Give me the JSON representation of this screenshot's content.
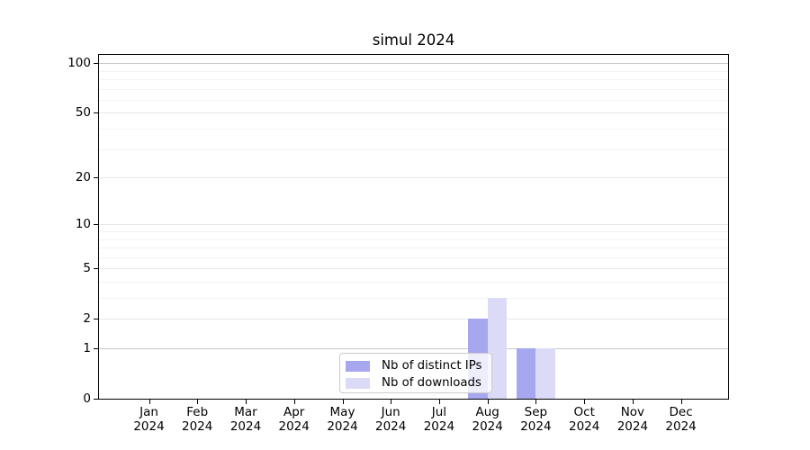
{
  "chart_data": {
    "type": "bar",
    "title": "simul 2024",
    "categories": [
      "Jan 2024",
      "Feb 2024",
      "Mar 2024",
      "Apr 2024",
      "May 2024",
      "Jun 2024",
      "Jul 2024",
      "Aug 2024",
      "Sep 2024",
      "Oct 2024",
      "Nov 2024",
      "Dec 2024"
    ],
    "series": [
      {
        "name": "Nb of distinct IPs",
        "color": "#a7a7f0",
        "values": [
          0,
          0,
          0,
          0,
          0,
          0,
          0,
          2,
          1,
          0,
          0,
          0
        ]
      },
      {
        "name": "Nb of downloads",
        "color": "#dbdbf8",
        "values": [
          0,
          0,
          0,
          0,
          0,
          0,
          0,
          3,
          1,
          0,
          0,
          0
        ]
      }
    ],
    "xlabel": "",
    "ylabel": "",
    "y_axis": {
      "scale": "log1p",
      "ticks": [
        0,
        1,
        2,
        5,
        10,
        20,
        50,
        100
      ],
      "minor_gridlines": [
        3,
        4,
        6,
        7,
        8,
        9,
        30,
        40,
        60,
        70,
        80,
        90
      ],
      "ylim": [
        0,
        112
      ]
    },
    "grid": true,
    "legend": {
      "position": "inside-bottom-center",
      "entries": [
        "Nb of distinct IPs",
        "Nb of downloads"
      ]
    }
  },
  "colors": {
    "bar_distinct_ips": "#a7a7f0",
    "bar_downloads": "#dbdbf8",
    "gridline_strong": "#c9c9c9",
    "gridline_mid": "#e7e7e7",
    "gridline_minor": "#f3f3f3",
    "axis": "#000000",
    "legend_border": "#cccccc",
    "background": "#ffffff"
  }
}
